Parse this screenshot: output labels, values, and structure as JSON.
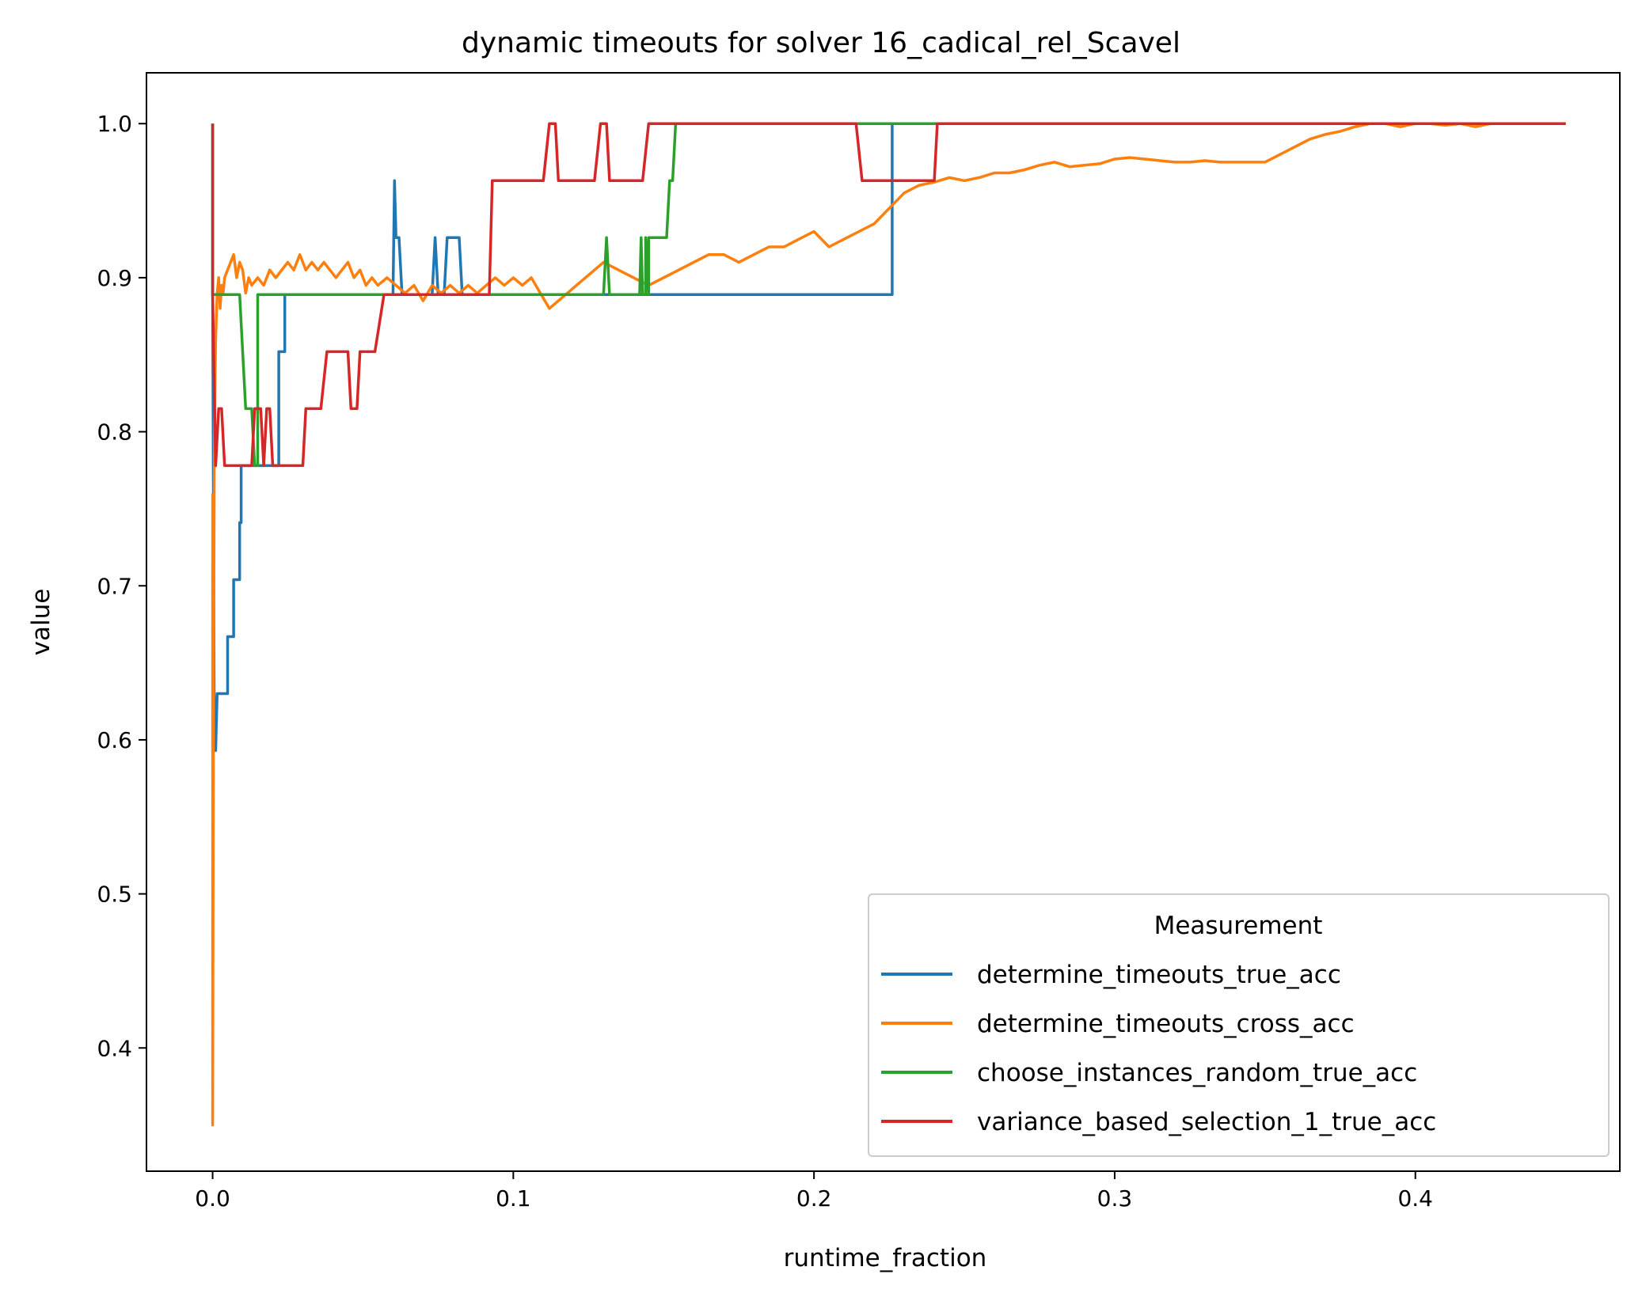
{
  "chart_data": {
    "type": "line",
    "title": "dynamic timeouts for solver 16_cadical_rel_Scavel",
    "xlabel": "runtime_fraction",
    "ylabel": "value",
    "xlim": [
      -0.022,
      0.468
    ],
    "ylim": [
      0.32,
      1.033
    ],
    "xticks": [
      0.0,
      0.1,
      0.2,
      0.3,
      0.4
    ],
    "xtick_labels": [
      "0.0",
      "0.1",
      "0.2",
      "0.3",
      "0.4"
    ],
    "yticks": [
      0.4,
      0.5,
      0.6,
      0.7,
      0.8,
      0.9,
      1.0
    ],
    "ytick_labels": [
      "0.4",
      "0.5",
      "0.6",
      "0.7",
      "0.8",
      "0.9",
      "1.0"
    ],
    "grid": false,
    "legend": {
      "title": "Measurement",
      "placement": "lower-right"
    },
    "series": [
      {
        "name": "determine_timeouts_true_acc",
        "color": "#1f77b4",
        "x": [
          0.0,
          0.0,
          0.0005,
          0.001,
          0.0015,
          0.002,
          0.002,
          0.005,
          0.005,
          0.006,
          0.007,
          0.007,
          0.009,
          0.009,
          0.0095,
          0.0095,
          0.0105,
          0.0105,
          0.022,
          0.022,
          0.024,
          0.024,
          0.025,
          0.025,
          0.06,
          0.0605,
          0.061,
          0.062,
          0.063,
          0.064,
          0.065,
          0.073,
          0.074,
          0.075,
          0.077,
          0.078,
          0.079,
          0.082,
          0.083,
          0.085,
          0.226,
          0.226,
          0.45
        ],
        "y": [
          1.0,
          0.889,
          0.63,
          0.593,
          0.63,
          0.63,
          0.63,
          0.63,
          0.667,
          0.667,
          0.667,
          0.704,
          0.704,
          0.741,
          0.741,
          0.778,
          0.778,
          0.778,
          0.778,
          0.852,
          0.852,
          0.889,
          0.889,
          0.889,
          0.889,
          0.963,
          0.926,
          0.926,
          0.889,
          0.889,
          0.889,
          0.889,
          0.926,
          0.889,
          0.889,
          0.926,
          0.926,
          0.926,
          0.889,
          0.889,
          0.889,
          1.0,
          1.0
        ]
      },
      {
        "name": "determine_timeouts_cross_acc",
        "color": "#ff7f0e",
        "x": [
          0.0,
          0.0,
          0.0003,
          0.0006,
          0.001,
          0.0015,
          0.002,
          0.0025,
          0.003,
          0.0035,
          0.004,
          0.005,
          0.006,
          0.007,
          0.008,
          0.009,
          0.01,
          0.011,
          0.012,
          0.013,
          0.015,
          0.017,
          0.019,
          0.021,
          0.023,
          0.025,
          0.027,
          0.029,
          0.031,
          0.033,
          0.035,
          0.037,
          0.039,
          0.041,
          0.043,
          0.045,
          0.047,
          0.049,
          0.051,
          0.053,
          0.055,
          0.058,
          0.061,
          0.064,
          0.067,
          0.07,
          0.073,
          0.076,
          0.079,
          0.082,
          0.085,
          0.088,
          0.091,
          0.094,
          0.097,
          0.1,
          0.103,
          0.106,
          0.109,
          0.112,
          0.115,
          0.118,
          0.121,
          0.124,
          0.127,
          0.13,
          0.135,
          0.14,
          0.145,
          0.15,
          0.155,
          0.16,
          0.165,
          0.17,
          0.175,
          0.18,
          0.185,
          0.19,
          0.195,
          0.2,
          0.205,
          0.21,
          0.215,
          0.22,
          0.225,
          0.23,
          0.235,
          0.24,
          0.245,
          0.25,
          0.255,
          0.26,
          0.265,
          0.27,
          0.275,
          0.28,
          0.285,
          0.29,
          0.295,
          0.3,
          0.305,
          0.31,
          0.315,
          0.32,
          0.325,
          0.33,
          0.335,
          0.34,
          0.345,
          0.35,
          0.355,
          0.36,
          0.365,
          0.37,
          0.375,
          0.38,
          0.385,
          0.39,
          0.395,
          0.4,
          0.405,
          0.41,
          0.415,
          0.42,
          0.425,
          0.43,
          0.44,
          0.45
        ],
        "y": [
          0.76,
          0.35,
          0.63,
          0.8,
          0.86,
          0.89,
          0.9,
          0.88,
          0.895,
          0.89,
          0.9,
          0.905,
          0.91,
          0.915,
          0.9,
          0.91,
          0.905,
          0.89,
          0.9,
          0.895,
          0.9,
          0.895,
          0.905,
          0.9,
          0.905,
          0.91,
          0.905,
          0.915,
          0.905,
          0.91,
          0.905,
          0.91,
          0.905,
          0.9,
          0.905,
          0.91,
          0.9,
          0.905,
          0.895,
          0.9,
          0.895,
          0.9,
          0.895,
          0.89,
          0.895,
          0.885,
          0.895,
          0.89,
          0.895,
          0.89,
          0.895,
          0.89,
          0.895,
          0.9,
          0.895,
          0.9,
          0.895,
          0.9,
          0.89,
          0.88,
          0.885,
          0.89,
          0.895,
          0.9,
          0.905,
          0.91,
          0.905,
          0.9,
          0.895,
          0.9,
          0.905,
          0.91,
          0.915,
          0.915,
          0.91,
          0.915,
          0.92,
          0.92,
          0.925,
          0.93,
          0.92,
          0.925,
          0.93,
          0.935,
          0.945,
          0.955,
          0.96,
          0.962,
          0.965,
          0.963,
          0.965,
          0.968,
          0.968,
          0.97,
          0.973,
          0.975,
          0.972,
          0.973,
          0.974,
          0.977,
          0.978,
          0.977,
          0.976,
          0.975,
          0.975,
          0.976,
          0.975,
          0.975,
          0.975,
          0.975,
          0.98,
          0.985,
          0.99,
          0.993,
          0.995,
          0.998,
          1.0,
          1.0,
          0.998,
          1.0,
          1.0,
          0.999,
          1.0,
          0.998,
          1.0,
          1.0,
          1.0,
          1.0
        ]
      },
      {
        "name": "choose_instances_random_true_acc",
        "color": "#2ca02c",
        "x": [
          0.0,
          0.0,
          0.009,
          0.01,
          0.011,
          0.012,
          0.013,
          0.014,
          0.015,
          0.015,
          0.13,
          0.131,
          0.132,
          0.142,
          0.1425,
          0.143,
          0.144,
          0.144,
          0.145,
          0.145,
          0.151,
          0.152,
          0.153,
          0.154,
          0.155,
          0.214,
          0.241,
          0.45
        ],
        "y": [
          1.0,
          0.889,
          0.889,
          0.852,
          0.815,
          0.815,
          0.815,
          0.778,
          0.778,
          0.889,
          0.889,
          0.926,
          0.889,
          0.889,
          0.926,
          0.889,
          0.889,
          0.926,
          0.889,
          0.926,
          0.926,
          0.963,
          0.963,
          1.0,
          1.0,
          1.0,
          1.0,
          1.0
        ]
      },
      {
        "name": "variance_based_selection_1_true_acc",
        "color": "#d62728",
        "x": [
          0.0,
          0.0,
          0.001,
          0.002,
          0.003,
          0.004,
          0.012,
          0.013,
          0.014,
          0.016,
          0.017,
          0.018,
          0.019,
          0.02,
          0.022,
          0.03,
          0.031,
          0.035,
          0.036,
          0.038,
          0.039,
          0.045,
          0.046,
          0.048,
          0.049,
          0.054,
          0.057,
          0.058,
          0.092,
          0.093,
          0.11,
          0.112,
          0.114,
          0.115,
          0.127,
          0.129,
          0.131,
          0.132,
          0.143,
          0.145,
          0.146,
          0.214,
          0.216,
          0.237,
          0.24,
          0.241,
          0.45
        ],
        "y": [
          1.0,
          0.889,
          0.778,
          0.815,
          0.815,
          0.778,
          0.778,
          0.778,
          0.815,
          0.815,
          0.778,
          0.815,
          0.815,
          0.778,
          0.778,
          0.778,
          0.815,
          0.815,
          0.815,
          0.852,
          0.852,
          0.852,
          0.815,
          0.815,
          0.852,
          0.852,
          0.889,
          0.889,
          0.889,
          0.963,
          0.963,
          1.0,
          1.0,
          0.963,
          0.963,
          1.0,
          1.0,
          0.963,
          0.963,
          1.0,
          1.0,
          1.0,
          0.963,
          0.963,
          0.963,
          1.0,
          1.0
        ]
      }
    ]
  }
}
